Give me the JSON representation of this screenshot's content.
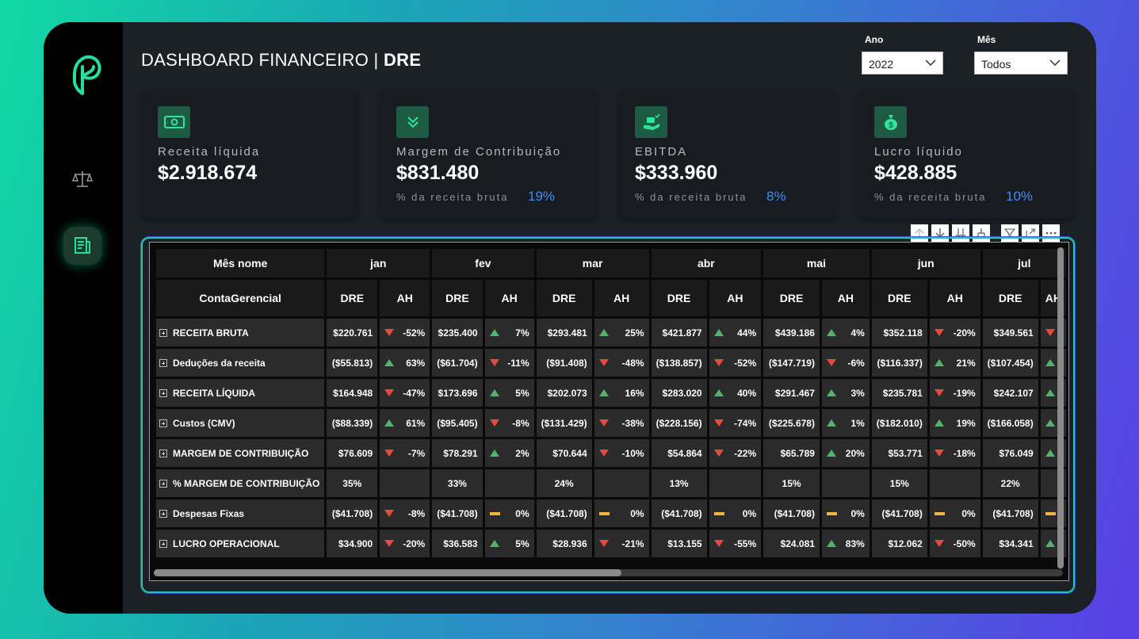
{
  "header": {
    "title_prefix": "DASHBOARD FINANCEIRO | ",
    "title_bold": "DRE"
  },
  "filters": {
    "year_label": "Ano",
    "year_value": "2022",
    "month_label": "Mês",
    "month_value": "Todos"
  },
  "kpis": [
    {
      "label": "Receita líquida",
      "value": "$2.918.674",
      "sub": "",
      "pct": "",
      "icon": "money-icon"
    },
    {
      "label": "Margem de Contribuição",
      "value": "$831.480",
      "sub": "% da receita bruta",
      "pct": "19%",
      "icon": "chevrons-down-icon"
    },
    {
      "label": "EBITDA",
      "value": "$333.960",
      "sub": "% da receita bruta",
      "pct": "8%",
      "icon": "hand-coin-icon"
    },
    {
      "label": "Lucro líquido",
      "value": "$428.885",
      "sub": "% da receita bruta",
      "pct": "10%",
      "icon": "money-bag-icon"
    }
  ],
  "matrix": {
    "row_header_1": "Mês nome",
    "row_header_2": "ContaGerencial",
    "months": [
      "jan",
      "fev",
      "mar",
      "abr",
      "mai",
      "jun",
      "jul"
    ],
    "col_dre": "DRE",
    "col_ah": "AH",
    "rows": [
      {
        "label": "RECEITA BRUTA",
        "cells": [
          [
            "$220.761",
            "down",
            "-52%"
          ],
          [
            "$235.400",
            "up",
            "7%"
          ],
          [
            "$293.481",
            "up",
            "25%"
          ],
          [
            "$421.877",
            "up",
            "44%"
          ],
          [
            "$439.186",
            "up",
            "4%"
          ],
          [
            "$352.118",
            "down",
            "-20%"
          ],
          [
            "$349.561",
            "down",
            ""
          ]
        ]
      },
      {
        "label": "Deduções da receita",
        "cells": [
          [
            "($55.813)",
            "up",
            "63%"
          ],
          [
            "($61.704)",
            "down",
            "-11%"
          ],
          [
            "($91.408)",
            "down",
            "-48%"
          ],
          [
            "($138.857)",
            "down",
            "-52%"
          ],
          [
            "($147.719)",
            "down",
            "-6%"
          ],
          [
            "($116.337)",
            "up",
            "21%"
          ],
          [
            "($107.454)",
            "up",
            ""
          ]
        ]
      },
      {
        "label": "RECEITA LÍQUIDA",
        "cells": [
          [
            "$164.948",
            "down",
            "-47%"
          ],
          [
            "$173.696",
            "up",
            "5%"
          ],
          [
            "$202.073",
            "up",
            "16%"
          ],
          [
            "$283.020",
            "up",
            "40%"
          ],
          [
            "$291.467",
            "up",
            "3%"
          ],
          [
            "$235.781",
            "down",
            "-19%"
          ],
          [
            "$242.107",
            "up",
            ""
          ]
        ]
      },
      {
        "label": "Custos (CMV)",
        "cells": [
          [
            "($88.339)",
            "up",
            "61%"
          ],
          [
            "($95.405)",
            "down",
            "-8%"
          ],
          [
            "($131.429)",
            "down",
            "-38%"
          ],
          [
            "($228.156)",
            "down",
            "-74%"
          ],
          [
            "($225.678)",
            "up",
            "1%"
          ],
          [
            "($182.010)",
            "up",
            "19%"
          ],
          [
            "($166.058)",
            "up",
            ""
          ]
        ]
      },
      {
        "label": "MARGEM DE CONTRIBUIÇÃO",
        "cells": [
          [
            "$76.609",
            "down",
            "-7%"
          ],
          [
            "$78.291",
            "up",
            "2%"
          ],
          [
            "$70.644",
            "down",
            "-10%"
          ],
          [
            "$54.864",
            "down",
            "-22%"
          ],
          [
            "$65.789",
            "up",
            "20%"
          ],
          [
            "$53.771",
            "down",
            "-18%"
          ],
          [
            "$76.049",
            "up",
            ""
          ]
        ]
      },
      {
        "label": "% MARGEM DE CONTRIBUIÇÃO",
        "cells": [
          [
            "35%",
            "none",
            ""
          ],
          [
            "33%",
            "none",
            ""
          ],
          [
            "24%",
            "none",
            ""
          ],
          [
            "13%",
            "none",
            ""
          ],
          [
            "15%",
            "none",
            ""
          ],
          [
            "15%",
            "none",
            ""
          ],
          [
            "22%",
            "none",
            ""
          ]
        ]
      },
      {
        "label": "Despesas Fixas",
        "cells": [
          [
            "($41.708)",
            "down",
            "-8%"
          ],
          [
            "($41.708)",
            "flat",
            "0%"
          ],
          [
            "($41.708)",
            "flat",
            "0%"
          ],
          [
            "($41.708)",
            "flat",
            "0%"
          ],
          [
            "($41.708)",
            "flat",
            "0%"
          ],
          [
            "($41.708)",
            "flat",
            "0%"
          ],
          [
            "($41.708)",
            "flat",
            ""
          ]
        ]
      },
      {
        "label": "LUCRO OPERACIONAL",
        "cells": [
          [
            "$34.900",
            "down",
            "-20%"
          ],
          [
            "$36.583",
            "up",
            "5%"
          ],
          [
            "$28.936",
            "down",
            "-21%"
          ],
          [
            "$13.155",
            "down",
            "-55%"
          ],
          [
            "$24.081",
            "up",
            "83%"
          ],
          [
            "$12.062",
            "down",
            "-50%"
          ],
          [
            "$34.341",
            "up",
            ""
          ]
        ]
      }
    ]
  }
}
